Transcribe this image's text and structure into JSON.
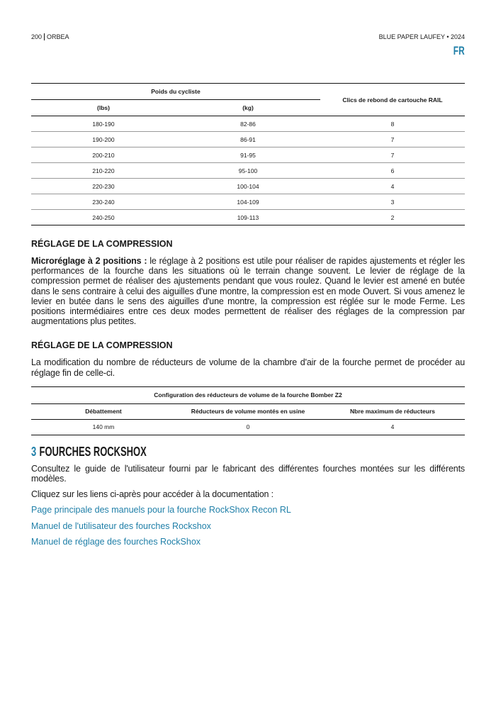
{
  "header": {
    "page_number": "200",
    "brand": "ORBEA",
    "doc_title": "BLUE PAPER LAUFEY • 2024",
    "language": "FR"
  },
  "table1": {
    "group_header": "Poids du cycliste",
    "col_lbs": "(lbs)",
    "col_kg": "(kg)",
    "col_clicks": "Clics de rebond de cartouche RAIL",
    "rows": [
      [
        "180-190",
        "82-86",
        "8"
      ],
      [
        "190-200",
        "86-91",
        "7"
      ],
      [
        "200-210",
        "91-95",
        "7"
      ],
      [
        "210-220",
        "95-100",
        "6"
      ],
      [
        "220-230",
        "100-104",
        "4"
      ],
      [
        "230-240",
        "104-109",
        "3"
      ],
      [
        "240-250",
        "109-113",
        "2"
      ]
    ]
  },
  "section1": {
    "heading": "RÉGLAGE DE LA COMPRESSION",
    "lead": "Microréglage à 2 positions :",
    "body": " le réglage à 2 positions est utile pour réaliser de rapides ajustements et régler les performances de la fourche dans les situations où le terrain change souvent. Le levier de réglage de la compression permet de réaliser des ajustements pendant que vous roulez. Quand le levier est amené en butée dans le sens contraire à celui des aiguilles d'une montre, la compression est en mode Ouvert. Si vous amenez le levier en butée dans le sens des aiguilles d'une montre, la compression est réglée sur le mode Ferme. Les positions intermédiaires entre ces deux modes permettent de réaliser des réglages de la compression par augmentations plus petites."
  },
  "section2": {
    "heading": "RÉGLAGE DE LA COMPRESSION",
    "body": "La modification du nombre de réducteurs de volume de la chambre d'air de la fourche permet de procéder au réglage fin de celle-ci."
  },
  "table2": {
    "title": "Configuration des réducteurs de volume de la fourche Bomber Z2",
    "headers": [
      "Débattement",
      "Réducteurs de volume montés en usine",
      "Nbre maximum de réducteurs"
    ],
    "row": [
      "140 mm",
      "0",
      "4"
    ]
  },
  "section3": {
    "number": "3",
    "title": "FOURCHES ROCKSHOX",
    "text1": "Consultez le guide de l'utilisateur fourni par le fabricant des différentes fourches montées sur les différents modèles.",
    "text2": "Cliquez sur les liens ci-après pour accéder à la documentation :",
    "links": [
      "Page principale des manuels pour la fourche RockShox Recon RL",
      "Manuel de l'utilisateur des fourches Rockshox",
      "Manuel de réglage des fourches RockShox"
    ]
  },
  "colors": {
    "accent": "#1f7fa8"
  }
}
